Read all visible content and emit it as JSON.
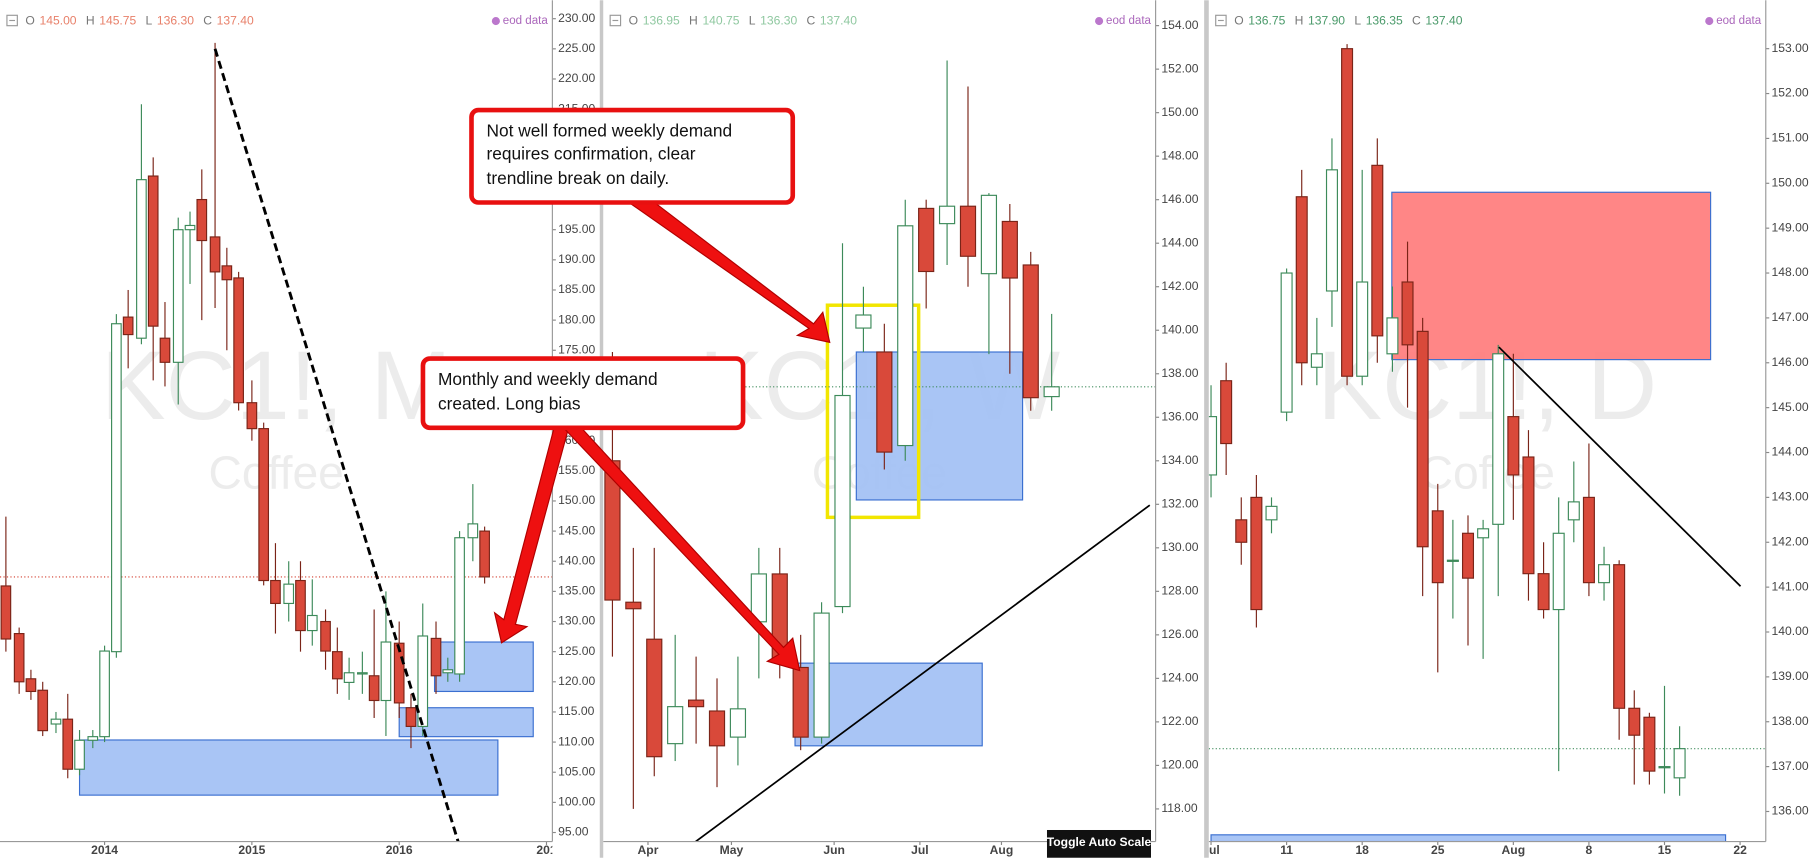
{
  "chart_data": [
    {
      "type": "candlestick",
      "watermark": "KC1!, M",
      "watermark_subtitle": "Coffee",
      "source": "eod data",
      "ohlc_labels": [
        "O",
        "H",
        "L",
        "C"
      ],
      "ohlc_value_labels": [
        "145.00",
        "145.75",
        "136.30",
        "137.40"
      ],
      "legend_color": "#e8806a",
      "price_line_color": "#d23a2a",
      "up_color": "#ffffff",
      "up_border": "#3d8a5a",
      "down_color": "#d9493a",
      "down_border": "#7a2418",
      "xlim": [
        2013.29,
        2017.04
      ],
      "xticks": [
        2014,
        2015,
        2016,
        {
          "value": 2017,
          "label": "201"
        }
      ],
      "ylim": [
        93.5,
        232.1
      ],
      "yticks": [
        {
          "value": 95,
          "label": "95.00"
        },
        {
          "value": 100,
          "label": "100.00"
        },
        {
          "value": 105,
          "label": "105.00"
        },
        {
          "value": 110,
          "label": "110.00"
        },
        {
          "value": 115,
          "label": "115.00"
        },
        {
          "value": 120,
          "label": "120.00"
        },
        {
          "value": 125,
          "label": "125.00"
        },
        {
          "value": 130,
          "label": "130.00"
        },
        {
          "value": 135,
          "label": "135.00"
        },
        {
          "value": 140,
          "label": "140.00"
        },
        {
          "value": 145,
          "label": "145.00"
        },
        {
          "value": 150,
          "label": "150.00"
        },
        {
          "value": 155,
          "label": "155.00"
        },
        {
          "value": 160,
          "label": "160.00"
        },
        {
          "value": 165,
          "label": "165.00"
        },
        {
          "value": 170,
          "label": "170.00"
        },
        {
          "value": 175,
          "label": "175.00"
        },
        {
          "value": 180,
          "label": "180.00"
        },
        {
          "value": 185,
          "label": "185.00"
        },
        {
          "value": 190,
          "label": "190.00"
        },
        {
          "value": 195,
          "label": "195.00"
        },
        {
          "value": 200,
          "label": "200.00"
        },
        {
          "value": 205,
          "label": "205.00"
        },
        {
          "value": 210,
          "label": "210.00"
        },
        {
          "value": 215,
          "label": "215.00"
        },
        {
          "value": 220,
          "label": "220.00"
        },
        {
          "value": 225,
          "label": "225.00"
        },
        {
          "value": 230,
          "label": "230.00"
        }
      ],
      "x": [
        2013.33,
        2013.42,
        2013.5,
        2013.58,
        2013.67,
        2013.75,
        2013.83,
        2013.92,
        2014,
        2014.08,
        2014.16,
        2014.25,
        2014.33,
        2014.41,
        2014.5,
        2014.58,
        2014.66,
        2014.75,
        2014.83,
        2014.91,
        2015,
        2015.08,
        2015.16,
        2015.25,
        2015.33,
        2015.41,
        2015.5,
        2015.58,
        2015.66,
        2015.75,
        2015.83,
        2015.91,
        2016,
        2016.08,
        2016.16,
        2016.25,
        2016.33,
        2016.41,
        2016.5,
        2016.58
      ],
      "open": [
        135.9,
        128,
        120.5,
        118.6,
        113,
        113.8,
        105.5,
        110.3,
        110.9,
        125,
        180.5,
        177,
        203.9,
        177,
        173,
        195,
        200,
        193.8,
        189,
        187,
        166.3,
        162,
        136.8,
        133,
        136.8,
        128.5,
        130,
        125,
        119.9,
        121.3,
        121,
        116.9,
        126.4,
        115.7,
        112.6,
        127.2,
        121.5,
        121.3,
        143.9,
        145
      ],
      "high": [
        147.4,
        129,
        122,
        120,
        115,
        118,
        112,
        112,
        126,
        181,
        185,
        215.8,
        207,
        183,
        197,
        198,
        205,
        226,
        192,
        188,
        170,
        163,
        143,
        140,
        140,
        137,
        132,
        129,
        124,
        125,
        132,
        135,
        130,
        118,
        133,
        130,
        124,
        145,
        152.8,
        145.75
      ],
      "low": [
        125,
        118,
        117,
        111,
        111.5,
        104,
        104.5,
        109,
        110,
        124,
        172,
        176,
        170,
        169,
        166,
        186,
        180,
        182,
        175,
        165,
        160,
        136,
        128,
        130,
        125,
        126,
        122,
        118,
        117,
        118,
        114,
        111,
        114,
        109,
        111,
        118,
        120,
        120,
        140,
        136.3
      ],
      "close": [
        127.1,
        120,
        118.4,
        111.9,
        113.8,
        105.5,
        110.3,
        110.9,
        125.1,
        179.4,
        177.6,
        203.3,
        179,
        173,
        195,
        195.7,
        193.2,
        188,
        186.7,
        166.3,
        162,
        136.8,
        133,
        136.2,
        128.5,
        131,
        125.1,
        120.5,
        121.5,
        121.5,
        116.9,
        126.6,
        116.5,
        112.6,
        127.6,
        121,
        122,
        143.9,
        146.2,
        137.4
      ],
      "zones": [
        {
          "xlim": [
            2013.83,
            2016.67
          ],
          "ylim": [
            101.2,
            110.35
          ],
          "color": "#a4c2f4",
          "border": "#3a6fd0"
        },
        {
          "xlim": [
            2016,
            2016.91
          ],
          "ylim": [
            110.9,
            115.7
          ],
          "color": "#a4c2f4",
          "border": "#3a6fd0"
        },
        {
          "xlim": [
            2016.24,
            2016.91
          ],
          "ylim": [
            118.4,
            126.6
          ],
          "color": "#a4c2f4",
          "border": "#3a6fd0"
        }
      ],
      "trendlines": [
        {
          "x": [
            2014.75,
            2016.4
          ],
          "y": [
            225,
            93.5
          ],
          "color": "#000000",
          "dashed": true
        }
      ]
    },
    {
      "type": "candlestick",
      "watermark": "KC1!, W",
      "watermark_subtitle": "Coffee",
      "source": "eod data",
      "ohlc_labels": [
        "O",
        "H",
        "L",
        "C"
      ],
      "ohlc_value_labels": [
        "136.95",
        "140.75",
        "136.30",
        "137.40"
      ],
      "legend_color": "#8fc8a0",
      "price_line_color": "#3d8a5a",
      "up_color": "#ffffff",
      "up_border": "#3d8a5a",
      "down_color": "#d9493a",
      "down_border": "#7a2418",
      "xlim": [
        -0.44,
        25.97
      ],
      "xticks": [
        {
          "value": 1.7,
          "label": "Apr"
        },
        {
          "value": 5.69,
          "label": "May"
        },
        {
          "value": 10.6,
          "label": "Jun"
        },
        {
          "value": 14.7,
          "label": "Jul"
        },
        {
          "value": 18.6,
          "label": "Aug"
        }
      ],
      "ylim": [
        116.5,
        154.9
      ],
      "yticks": [
        {
          "value": 118,
          "label": "118.00"
        },
        {
          "value": 120,
          "label": "120.00"
        },
        {
          "value": 122,
          "label": "122.00"
        },
        {
          "value": 124,
          "label": "124.00"
        },
        {
          "value": 126,
          "label": "126.00"
        },
        {
          "value": 128,
          "label": "128.00"
        },
        {
          "value": 130,
          "label": "130.00"
        },
        {
          "value": 132,
          "label": "132.00"
        },
        {
          "value": 134,
          "label": "134.00"
        },
        {
          "value": 136,
          "label": "136.00"
        },
        {
          "value": 138,
          "label": "138.00"
        },
        {
          "value": 140,
          "label": "140.00"
        },
        {
          "value": 142,
          "label": "142.00"
        },
        {
          "value": 144,
          "label": "144.00"
        },
        {
          "value": 146,
          "label": "146.00"
        },
        {
          "value": 148,
          "label": "148.00"
        },
        {
          "value": 150,
          "label": "150.00"
        },
        {
          "value": 152,
          "label": "152.00"
        },
        {
          "value": 154,
          "label": "154.00"
        }
      ],
      "x": [
        0,
        1,
        2,
        3,
        4,
        5,
        6,
        7,
        8,
        9,
        10,
        11,
        12,
        13,
        14,
        15,
        16,
        17,
        18,
        19,
        20,
        21
      ],
      "open": [
        134,
        127.5,
        125.8,
        121,
        123,
        122.5,
        121.3,
        126.6,
        128.8,
        124.5,
        121.3,
        127.3,
        140.1,
        139,
        134.7,
        145.6,
        144.9,
        145.7,
        142.6,
        145,
        143,
        136.95
      ],
      "high": [
        139,
        130,
        130,
        126,
        125,
        124,
        125,
        130,
        130,
        126,
        127.5,
        144,
        142,
        140.3,
        146,
        146,
        152.4,
        151.2,
        146.3,
        145.8,
        143.6,
        140.75
      ],
      "low": [
        125,
        118,
        119.5,
        120.2,
        121,
        119,
        120,
        124,
        124,
        120.7,
        121,
        127,
        139,
        133.6,
        134,
        141,
        143,
        142,
        138.9,
        138,
        136.3,
        136.3
      ],
      "close": [
        127.6,
        127.2,
        120.4,
        122.7,
        122.7,
        120.9,
        122.6,
        128.8,
        124.8,
        121.3,
        127,
        137,
        140.7,
        134.4,
        144.8,
        142.7,
        145.7,
        143.4,
        146.2,
        142.4,
        136.9,
        137.4
      ],
      "zones": [
        {
          "xlim": [
            11.66,
            19.61
          ],
          "ylim": [
            132.2,
            139
          ],
          "color": "#a4c2f4",
          "border": "#3a6fd0"
        },
        {
          "xlim": [
            8.73,
            17.68
          ],
          "ylim": [
            120.9,
            124.7
          ],
          "color": "#a4c2f4",
          "border": "#3a6fd0"
        },
        {
          "xlim": [
            10.28,
            14.64
          ],
          "ylim": [
            131.4,
            141.15
          ],
          "color": "none",
          "border": "#f2e600"
        }
      ],
      "trendlines": [
        {
          "x": [
            3.98,
            25.69
          ],
          "y": [
            116.5,
            131.96
          ],
          "color": "#000000",
          "dashed": false
        }
      ]
    },
    {
      "type": "candlestick",
      "watermark": "KC1!, D",
      "watermark_subtitle": "Coffee",
      "source": "eod data",
      "ohlc_labels": [
        "O",
        "H",
        "L",
        "C"
      ],
      "ohlc_value_labels": [
        "136.75",
        "137.90",
        "136.35",
        "137.40"
      ],
      "legend_color": "#4a9a6a",
      "price_line_color": "#3d8a5a",
      "up_color": "#ffffff",
      "up_border": "#3d8a5a",
      "down_color": "#d9493a",
      "down_border": "#7a2418",
      "xlim": [
        -0.15,
        36.7
      ],
      "xticks": [
        {
          "value": 0,
          "label": "Jul"
        },
        {
          "value": 5,
          "label": "11"
        },
        {
          "value": 10,
          "label": "18"
        },
        {
          "value": 15,
          "label": "25"
        },
        {
          "value": 20,
          "label": "Aug"
        },
        {
          "value": 25,
          "label": "8"
        },
        {
          "value": 30,
          "label": "15"
        },
        {
          "value": 35,
          "label": "22"
        }
      ],
      "ylim": [
        135.33,
        153.95
      ],
      "yticks": [
        {
          "value": 136,
          "label": "136.00"
        },
        {
          "value": 137,
          "label": "137.00"
        },
        {
          "value": 138,
          "label": "138.00"
        },
        {
          "value": 139,
          "label": "139.00"
        },
        {
          "value": 140,
          "label": "140.00"
        },
        {
          "value": 141,
          "label": "141.00"
        },
        {
          "value": 142,
          "label": "142.00"
        },
        {
          "value": 143,
          "label": "143.00"
        },
        {
          "value": 144,
          "label": "144.00"
        },
        {
          "value": 145,
          "label": "145.00"
        },
        {
          "value": 146,
          "label": "146.00"
        },
        {
          "value": 147,
          "label": "147.00"
        },
        {
          "value": 148,
          "label": "148.00"
        },
        {
          "value": 149,
          "label": "149.00"
        },
        {
          "value": 150,
          "label": "150.00"
        },
        {
          "value": 151,
          "label": "151.00"
        },
        {
          "value": 152,
          "label": "152.00"
        },
        {
          "value": 153,
          "label": "153.00"
        }
      ],
      "x": [
        0,
        1,
        2,
        3,
        4,
        5,
        6,
        7,
        8,
        9,
        10,
        11,
        12,
        13,
        14,
        15,
        16,
        17,
        18,
        19,
        20,
        21,
        22,
        23,
        24,
        25,
        26,
        27,
        28,
        29,
        30,
        31
      ],
      "open": [
        143.5,
        145.6,
        142.5,
        143,
        142.5,
        144.9,
        149.7,
        145.9,
        147.6,
        153,
        145.7,
        150.4,
        146.2,
        147.8,
        146.7,
        142.7,
        141.6,
        142.2,
        142.1,
        142.4,
        144.8,
        143.9,
        141.3,
        140.5,
        142.5,
        143,
        141.1,
        141.5,
        138.3,
        138.1,
        137,
        136.75
      ],
      "high": [
        145.5,
        146,
        143,
        143.5,
        143,
        148.1,
        150.3,
        147,
        151,
        153.1,
        150.3,
        151,
        147.7,
        148.7,
        147,
        143.3,
        142.5,
        142.6,
        142.5,
        146.4,
        146.2,
        144.5,
        142,
        143,
        143.8,
        144.2,
        141.9,
        141.6,
        138.7,
        138.2,
        138.8,
        137.9
      ],
      "low": [
        143,
        143.5,
        141.5,
        140.1,
        142.2,
        144.7,
        145.5,
        145.5,
        146.8,
        145.5,
        145.5,
        146,
        145.8,
        145,
        140.8,
        139.1,
        140.3,
        139.7,
        139.4,
        140.8,
        142.5,
        140.7,
        140.3,
        136.9,
        142,
        140.8,
        140.7,
        137.6,
        136.6,
        136.6,
        136.4,
        136.35
      ],
      "close": [
        144.8,
        144.2,
        142,
        140.5,
        142.8,
        148,
        146,
        146.2,
        150.3,
        145.7,
        147.8,
        146.6,
        147,
        146.4,
        141.9,
        141.1,
        141.6,
        141.2,
        142.3,
        146.2,
        143.5,
        141.3,
        140.5,
        142.2,
        142.9,
        141.1,
        141.5,
        138.3,
        137.7,
        136.9,
        137,
        137.4
      ],
      "zones": [
        {
          "xlim": [
            11.96,
            33.05
          ],
          "ylim": [
            146.07,
            149.8
          ],
          "color": "#ff8080",
          "border": "#3a6fd0"
        },
        {
          "xlim": [
            0,
            34.04
          ],
          "ylim": [
            135.33,
            135.48
          ],
          "color": "#a4c2f4",
          "border": "#3a6fd0"
        }
      ],
      "trendlines": [
        {
          "x": [
            19.04,
            35.03
          ],
          "y": [
            146.35,
            141.02
          ],
          "color": "#000000",
          "dashed": false
        }
      ]
    }
  ],
  "annotations": [
    {
      "lines": [
        "Not well formed weekly demand",
        "requires confirmation, clear",
        "trendline break on daily."
      ]
    },
    {
      "lines": [
        "Monthly and weekly demand",
        "created. Long bias"
      ]
    }
  ],
  "button": "Toggle Auto Scale"
}
